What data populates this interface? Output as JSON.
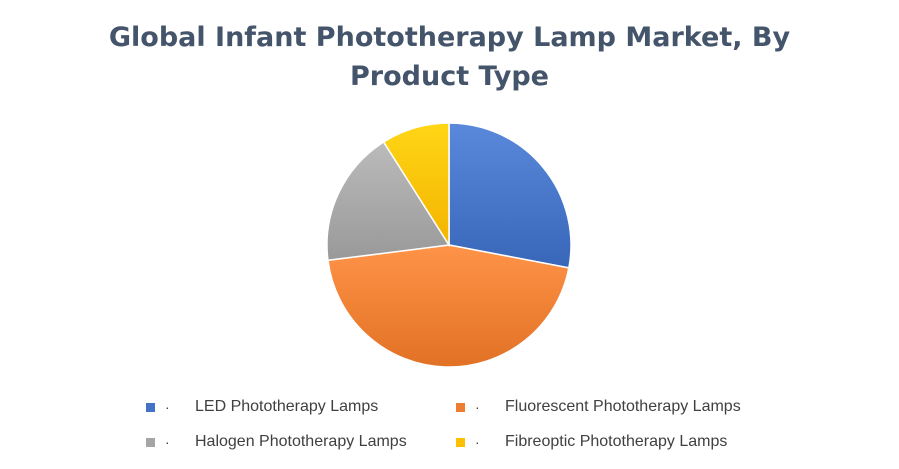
{
  "chart_data": {
    "type": "pie",
    "title": "Global Infant Phototherapy Lamp Market, By Product Type",
    "title_lines": [
      "Global Infant Phototherapy Lamp Market, By",
      "Product Type"
    ],
    "slices": [
      {
        "name": "LED Phototherapy Lamps",
        "value": 28,
        "color": "#4472c4"
      },
      {
        "name": "Fluorescent Phototherapy Lamps",
        "value": 45,
        "color": "#ed7d31"
      },
      {
        "name": "Halogen Phototherapy Lamps",
        "value": 18,
        "color": "#a5a5a5"
      },
      {
        "name": "Fibreoptic Phototherapy Lamps",
        "value": 9,
        "color": "#ffc000"
      }
    ],
    "legend_position": "bottom",
    "legend_bullet": "·",
    "start_angle": "top, clockwise"
  }
}
